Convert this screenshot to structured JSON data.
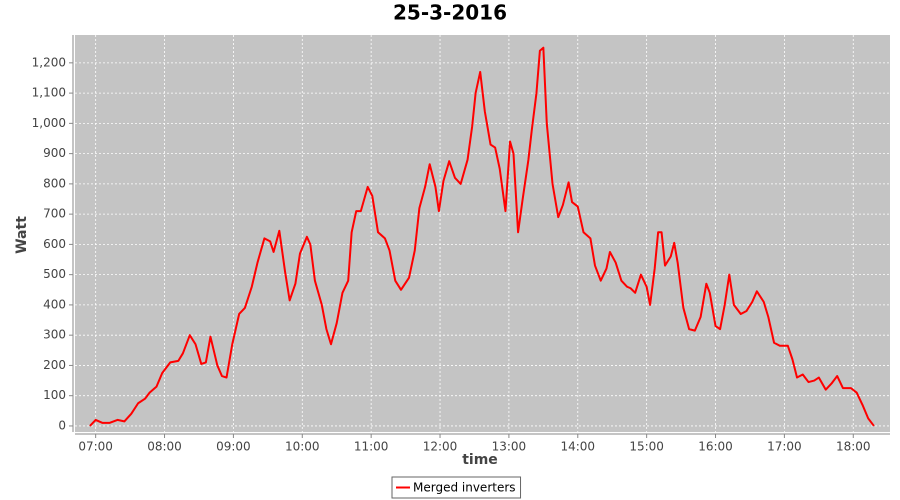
{
  "chart_data": {
    "type": "line",
    "title": "25-3-2016",
    "x_label": "time",
    "y_label": "Watt",
    "x": [
      "06:55",
      "07:00",
      "07:06",
      "07:12",
      "07:19",
      "07:25",
      "07:31",
      "07:37",
      "07:43",
      "07:47",
      "07:53",
      "07:58",
      "08:05",
      "08:12",
      "08:16",
      "08:22",
      "08:27",
      "08:32",
      "08:36",
      "08:40",
      "08:46",
      "08:50",
      "08:54",
      "08:59",
      "09:05",
      "09:10",
      "09:16",
      "09:21",
      "09:27",
      "09:32",
      "09:35",
      "09:40",
      "09:45",
      "09:49",
      "09:54",
      "09:58",
      "10:04",
      "10:07",
      "10:11",
      "10:17",
      "10:21",
      "10:25",
      "10:30",
      "10:35",
      "10:40",
      "10:43",
      "10:47",
      "10:51",
      "10:57",
      "11:01",
      "11:06",
      "11:12",
      "11:16",
      "11:21",
      "11:26",
      "11:33",
      "11:38",
      "11:42",
      "11:47",
      "11:51",
      "11:56",
      "11:59",
      "12:03",
      "12:08",
      "12:13",
      "12:18",
      "12:24",
      "12:28",
      "12:31",
      "12:35",
      "12:39",
      "12:44",
      "12:48",
      "12:52",
      "12:57",
      "13:01",
      "13:04",
      "13:08",
      "13:12",
      "13:17",
      "13:20",
      "13:24",
      "13:27",
      "13:30",
      "13:33",
      "13:38",
      "13:43",
      "13:47",
      "13:52",
      "13:55",
      "14:00",
      "14:05",
      "14:11",
      "14:15",
      "14:20",
      "14:25",
      "14:28",
      "14:33",
      "14:38",
      "14:43",
      "14:46",
      "14:50",
      "14:55",
      "15:00",
      "15:03",
      "15:07",
      "15:10",
      "15:13",
      "15:16",
      "15:21",
      "15:24",
      "15:27",
      "15:32",
      "15:37",
      "15:42",
      "15:47",
      "15:52",
      "15:55",
      "16:00",
      "16:04",
      "16:08",
      "16:12",
      "16:16",
      "16:22",
      "16:27",
      "16:32",
      "16:36",
      "16:42",
      "16:46",
      "16:51",
      "16:56",
      "17:03",
      "17:07",
      "17:11",
      "17:16",
      "17:21",
      "17:26",
      "17:30",
      "17:36",
      "17:41",
      "17:46",
      "17:51",
      "17:58",
      "18:03",
      "18:08",
      "18:13",
      "18:18"
    ],
    "series": [
      {
        "name": "Merged inverters",
        "color": "#ff0000",
        "values": [
          0,
          20,
          10,
          10,
          20,
          15,
          40,
          75,
          90,
          110,
          130,
          175,
          210,
          215,
          240,
          300,
          270,
          205,
          210,
          295,
          200,
          165,
          160,
          270,
          370,
          390,
          460,
          540,
          620,
          610,
          575,
          645,
          510,
          415,
          470,
          570,
          625,
          600,
          480,
          400,
          320,
          270,
          340,
          440,
          480,
          640,
          710,
          710,
          790,
          760,
          640,
          620,
          580,
          480,
          450,
          490,
          580,
          720,
          790,
          865,
          790,
          710,
          810,
          875,
          820,
          800,
          880,
          990,
          1100,
          1170,
          1040,
          930,
          920,
          850,
          710,
          940,
          900,
          640,
          750,
          880,
          980,
          1100,
          1240,
          1250,
          1000,
          800,
          690,
          730,
          805,
          740,
          725,
          640,
          620,
          530,
          480,
          520,
          575,
          540,
          480,
          460,
          455,
          440,
          500,
          460,
          400,
          520,
          640,
          640,
          530,
          560,
          605,
          540,
          390,
          320,
          315,
          360,
          470,
          440,
          330,
          320,
          400,
          500,
          400,
          370,
          380,
          410,
          445,
          410,
          360,
          275,
          265,
          265,
          220,
          160,
          170,
          145,
          150,
          160,
          120,
          140,
          165,
          125,
          125,
          110,
          70,
          25,
          0
        ]
      }
    ],
    "xlim": [
      "06:42",
      "18:32"
    ],
    "xticks": [
      "07:00",
      "08:00",
      "09:00",
      "10:00",
      "11:00",
      "12:00",
      "13:00",
      "14:00",
      "15:00",
      "16:00",
      "17:00",
      "18:00"
    ],
    "ylim": [
      -20,
      1292
    ],
    "yticks": [
      0,
      100,
      200,
      300,
      400,
      500,
      600,
      700,
      800,
      900,
      {
        "value": 1000,
        "label": "1,000"
      },
      {
        "value": 1100,
        "label": "1,100"
      },
      {
        "value": 1200,
        "label": "1,200"
      }
    ],
    "grid": true,
    "plot_background": "#c4c4c4",
    "legend": "bottom"
  }
}
